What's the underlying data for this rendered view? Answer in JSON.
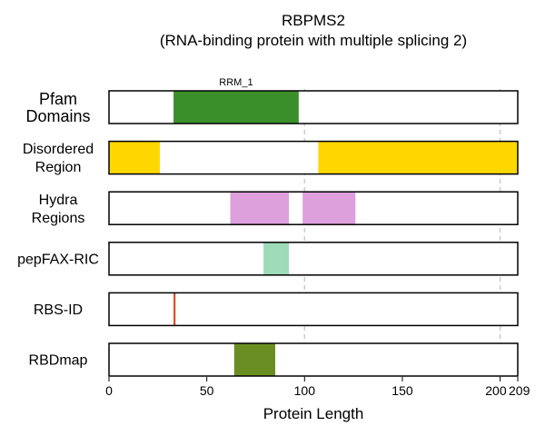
{
  "chart_data": {
    "type": "bar",
    "title": "RBPMS2",
    "subtitle": "(RNA-binding protein with multiple splicing 2)",
    "xlabel": "Protein Length",
    "xlim": [
      0,
      209
    ],
    "xticks": [
      0,
      50,
      100,
      150,
      200,
      209
    ],
    "dashed_gridlines": [
      100,
      200
    ],
    "tracks": [
      {
        "label": [
          "Pfam",
          "Domains"
        ],
        "segments": [
          {
            "start": 33,
            "end": 97,
            "color": "#3a8f2a",
            "label": "RRM_1"
          }
        ]
      },
      {
        "label": [
          "Disordered",
          "Region"
        ],
        "segments": [
          {
            "start": 0,
            "end": 26,
            "color": "#ffd700"
          },
          {
            "start": 107,
            "end": 209,
            "color": "#ffd700"
          }
        ]
      },
      {
        "label": [
          "Hydra",
          "Regions"
        ],
        "segments": [
          {
            "start": 62,
            "end": 92,
            "color": "#dda0dd"
          },
          {
            "start": 99,
            "end": 126,
            "color": "#dda0dd"
          }
        ]
      },
      {
        "label": [
          "pepFAX-RIC"
        ],
        "segments": [
          {
            "start": 79,
            "end": 92,
            "color": "#9edbb9"
          }
        ]
      },
      {
        "label": [
          "RBS-ID"
        ],
        "segments": [
          {
            "start": 33,
            "end": 34,
            "color": "#e8481c"
          }
        ]
      },
      {
        "label": [
          "RBDmap"
        ],
        "segments": [
          {
            "start": 64,
            "end": 85,
            "color": "#6b8e23"
          }
        ]
      }
    ]
  }
}
